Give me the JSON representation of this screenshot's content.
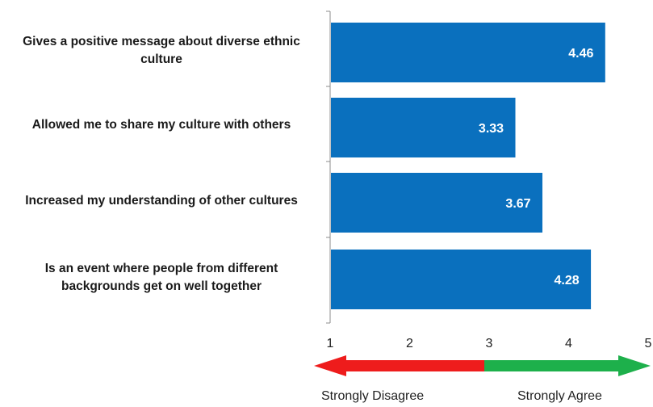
{
  "chart_data": {
    "type": "bar",
    "orientation": "horizontal",
    "categories": [
      "Gives a positive message about diverse ethnic culture",
      "Allowed me to share my culture with others",
      "Increased my understanding of other cultures",
      "Is an event where people from different backgrounds get on well together"
    ],
    "values": [
      4.46,
      3.33,
      3.67,
      4.28
    ],
    "value_labels": [
      "4.46",
      "3.33",
      "3.67",
      "4.28"
    ],
    "xlim": [
      1,
      5
    ],
    "x_ticks": [
      "1",
      "2",
      "3",
      "4",
      "5"
    ],
    "grid": false,
    "bar_color": "#0a70be",
    "scale": {
      "left_label": "Strongly Disagree",
      "right_label": "Strongly Agree",
      "left_color": "#ee1c1c",
      "right_color": "#1db04b"
    }
  }
}
